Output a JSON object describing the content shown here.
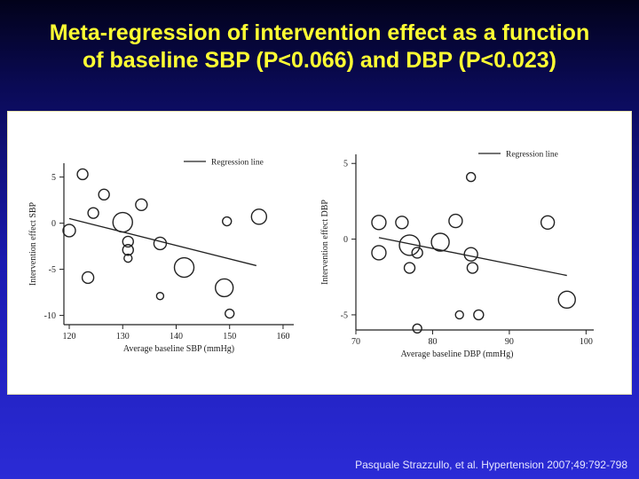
{
  "slide": {
    "title_line1": "Meta-regression of intervention effect as a function",
    "title_line2": "of baseline SBP (P<0.066) and DBP (P<0.023)",
    "citation": "Pasquale Strazzullo, et al. Hypertension 2007;49:792-798",
    "title_color": "#ffff33"
  },
  "chart_data": [
    {
      "type": "scatter",
      "title": "",
      "xlabel": "Average baseline SBP (mmHg)",
      "ylabel": "Intervention effect SBP",
      "xlim": [
        119,
        162
      ],
      "ylim": [
        -11,
        6.5
      ],
      "xticks": [
        120,
        130,
        140,
        150,
        160
      ],
      "yticks": [
        5,
        0,
        -5,
        -10
      ],
      "legend": "Regression line",
      "legend_position": "top-center",
      "grid": false,
      "regression": {
        "x": [
          120,
          155
        ],
        "y": [
          0.5,
          -4.6
        ]
      },
      "points": [
        {
          "x": 122.5,
          "y": 5.3,
          "size": 6
        },
        {
          "x": 126.5,
          "y": 3.1,
          "size": 6
        },
        {
          "x": 124.5,
          "y": 1.1,
          "size": 6
        },
        {
          "x": 133.5,
          "y": 2.0,
          "size": 6.5
        },
        {
          "x": 130.0,
          "y": 0.1,
          "size": 11
        },
        {
          "x": 120.0,
          "y": -0.8,
          "size": 7
        },
        {
          "x": 131.0,
          "y": -2.0,
          "size": 6
        },
        {
          "x": 131.0,
          "y": -2.9,
          "size": 6
        },
        {
          "x": 131.0,
          "y": -3.8,
          "size": 4.5
        },
        {
          "x": 137.0,
          "y": -2.2,
          "size": 7
        },
        {
          "x": 141.5,
          "y": -4.8,
          "size": 11
        },
        {
          "x": 123.5,
          "y": -5.9,
          "size": 6.5
        },
        {
          "x": 137.0,
          "y": -7.9,
          "size": 4
        },
        {
          "x": 149.0,
          "y": -7.0,
          "size": 10
        },
        {
          "x": 149.5,
          "y": 0.2,
          "size": 5
        },
        {
          "x": 155.5,
          "y": 0.7,
          "size": 8.5
        },
        {
          "x": 150.0,
          "y": -9.8,
          "size": 5
        }
      ]
    },
    {
      "type": "scatter",
      "title": "",
      "xlabel": "Average baseline DBP  (mmHg)",
      "ylabel": "Intervention effect DBP",
      "xlim": [
        70,
        101
      ],
      "ylim": [
        -6,
        5.6
      ],
      "xticks": [
        70,
        80,
        90,
        100
      ],
      "yticks": [
        5,
        0,
        -5
      ],
      "legend": "Regression line",
      "legend_position": "top-right",
      "grid": false,
      "regression": {
        "x": [
          73,
          97.5
        ],
        "y": [
          0.1,
          -2.4
        ]
      },
      "points": [
        {
          "x": 73.0,
          "y": 1.1,
          "size": 8
        },
        {
          "x": 76.0,
          "y": 1.1,
          "size": 7
        },
        {
          "x": 73.0,
          "y": -0.9,
          "size": 8
        },
        {
          "x": 77.0,
          "y": -0.4,
          "size": 11.5
        },
        {
          "x": 78.0,
          "y": -0.9,
          "size": 6
        },
        {
          "x": 77.0,
          "y": -1.9,
          "size": 6
        },
        {
          "x": 81.0,
          "y": -0.2,
          "size": 10
        },
        {
          "x": 83.0,
          "y": 1.2,
          "size": 7.5
        },
        {
          "x": 85.0,
          "y": 4.1,
          "size": 5
        },
        {
          "x": 85.0,
          "y": -1.0,
          "size": 7.5
        },
        {
          "x": 85.2,
          "y": -1.9,
          "size": 6
        },
        {
          "x": 95.0,
          "y": 1.1,
          "size": 7.5
        },
        {
          "x": 97.5,
          "y": -4.0,
          "size": 9.5
        },
        {
          "x": 83.5,
          "y": -5.0,
          "size": 4.5
        },
        {
          "x": 86.0,
          "y": -5.0,
          "size": 5.5
        },
        {
          "x": 78.0,
          "y": -5.9,
          "size": 5
        }
      ]
    }
  ]
}
